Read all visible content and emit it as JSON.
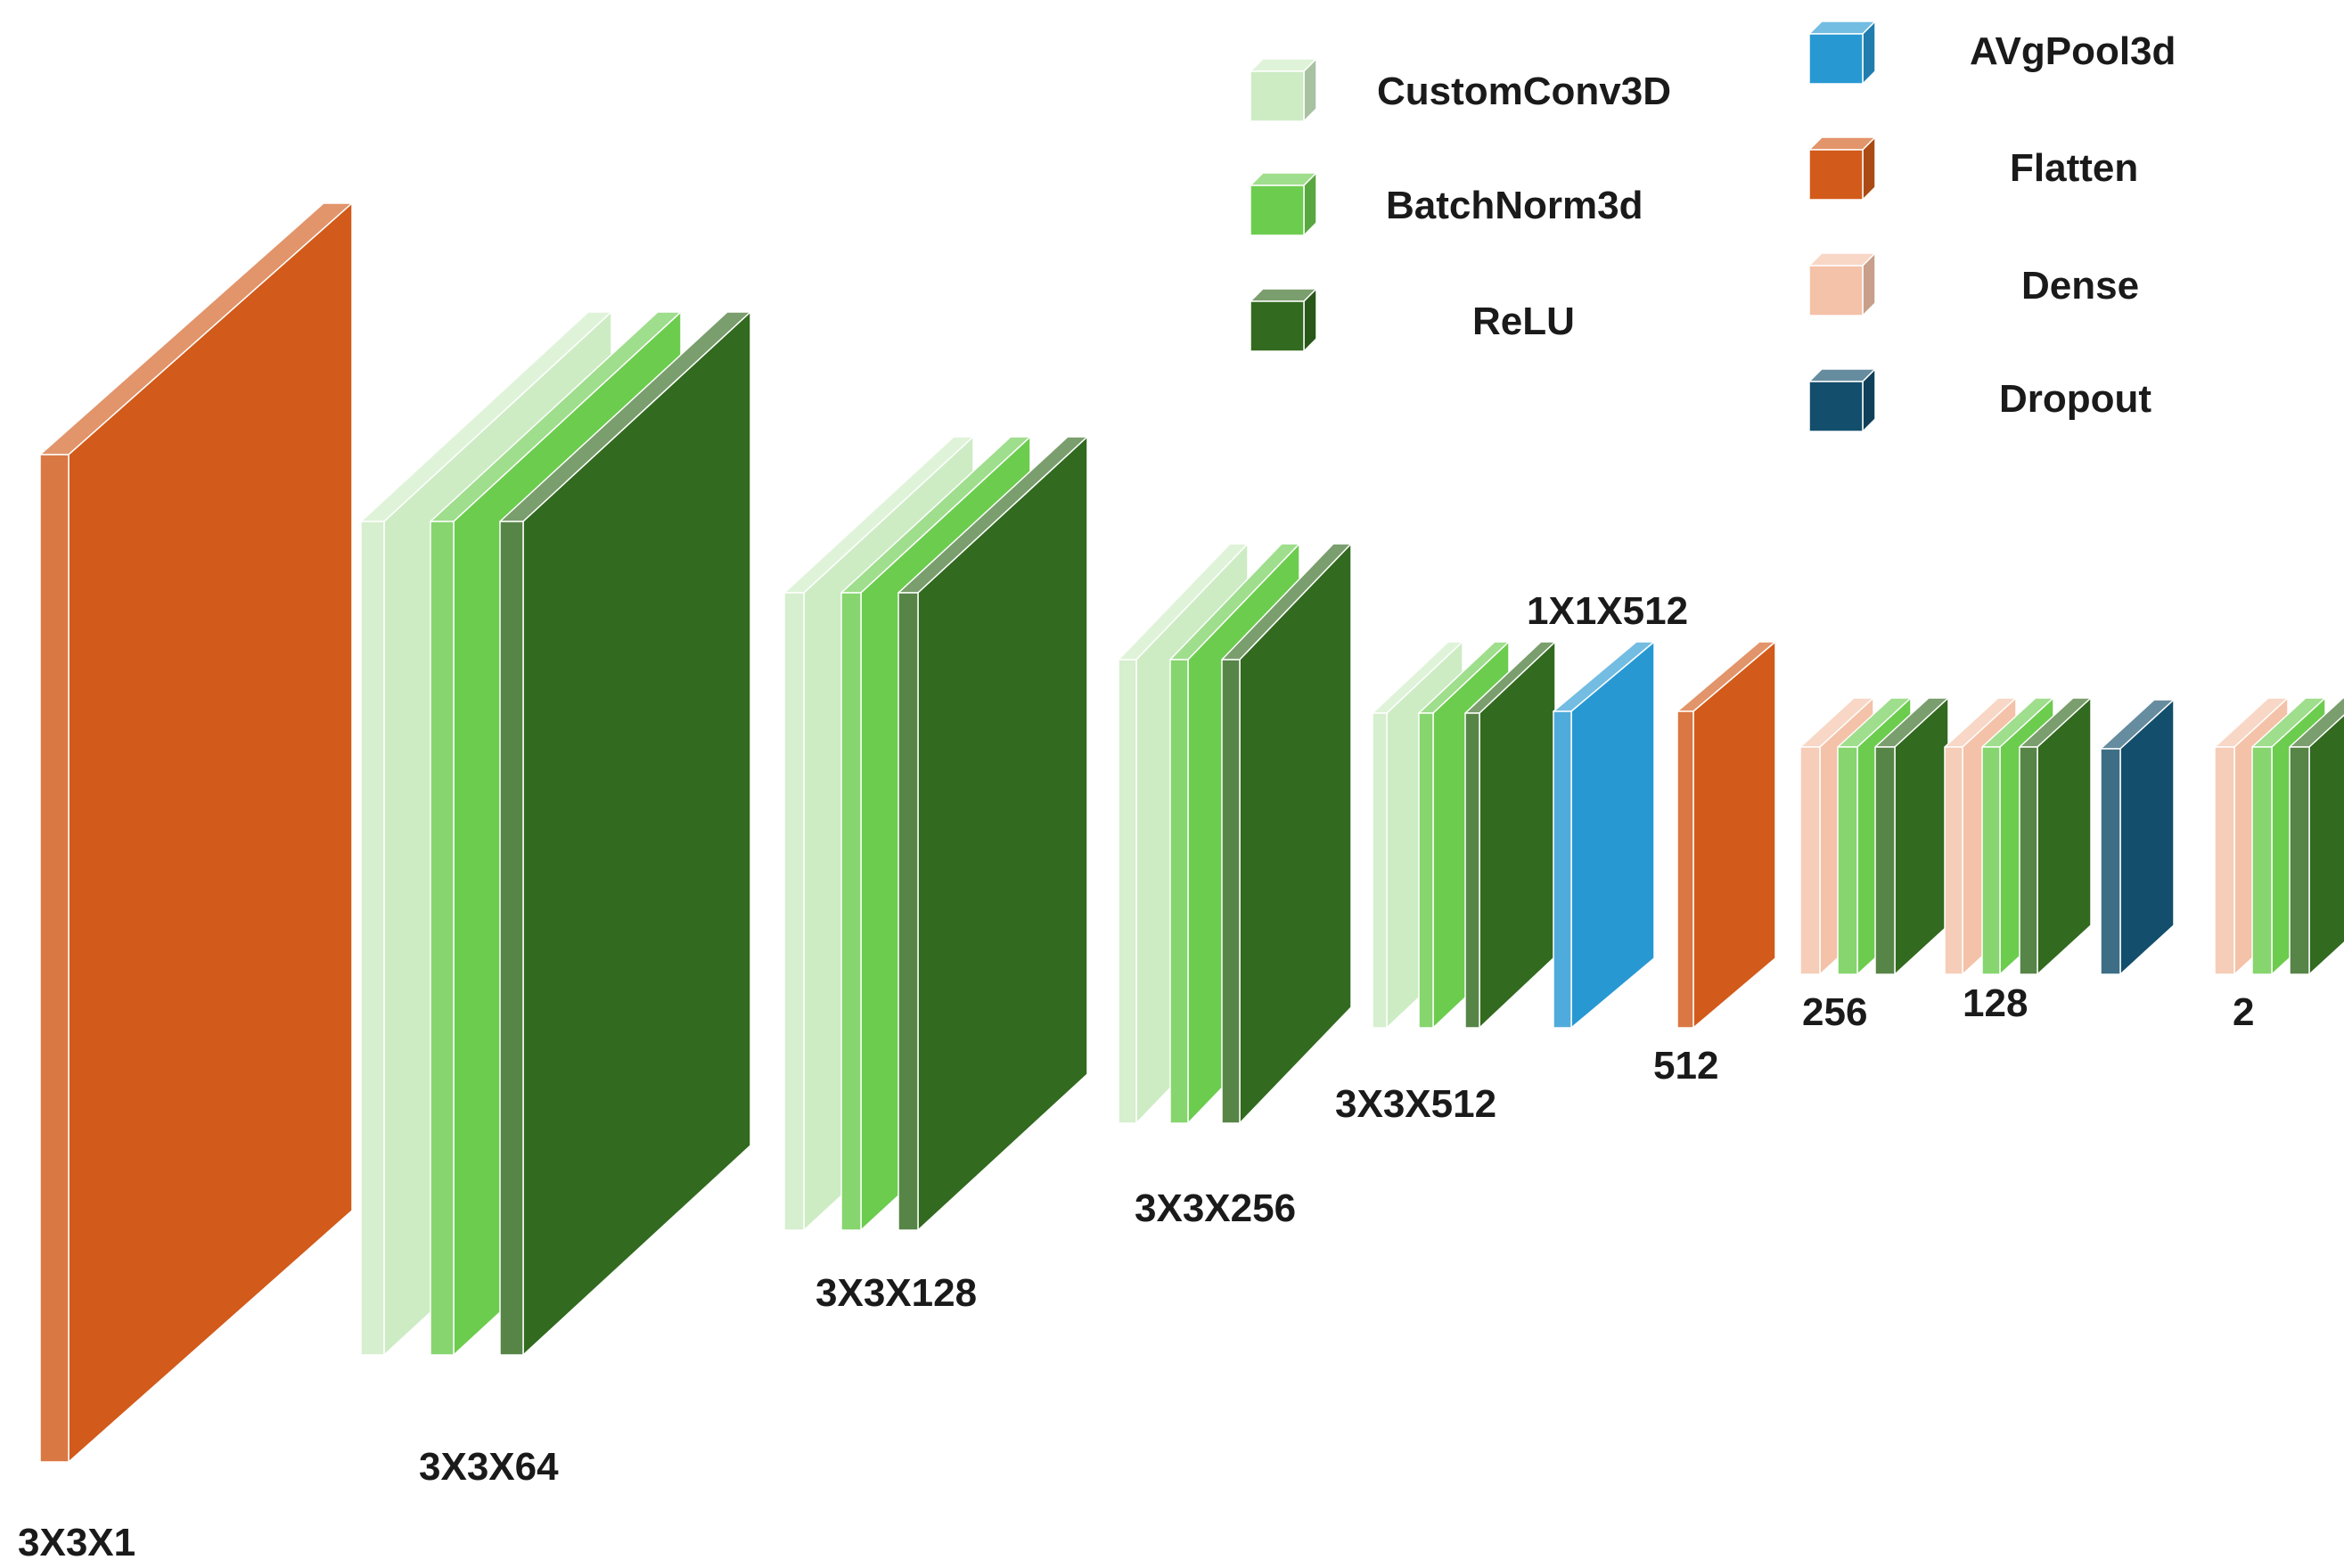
{
  "colors": {
    "custom_conv3d": "#cdecc4",
    "batchnorm3d": "#6ccc4e",
    "relu": "#326a1f",
    "avgpool3d": "#2898d3",
    "flatten": "#d25a1a",
    "dense": "#f4c2a8",
    "dropout": "#134e6c"
  },
  "legend": [
    {
      "label": "CustomConv3D",
      "type": "custom_conv3d"
    },
    {
      "label": "BatchNorm3d",
      "type": "batchnorm3d"
    },
    {
      "label": "ReLU",
      "type": "relu"
    },
    {
      "label": "AVgPool3d",
      "type": "avgpool3d"
    },
    {
      "label": "Flatten",
      "type": "flatten"
    },
    {
      "label": "Dense",
      "type": "dense"
    },
    {
      "label": "Dropout",
      "type": "dropout"
    }
  ],
  "blocks": [
    {
      "name": "input",
      "label": "3X3X1",
      "layers": [
        "flatten"
      ]
    },
    {
      "name": "conv-block-1",
      "label": "3X3X64",
      "layers": [
        "custom_conv3d",
        "batchnorm3d",
        "relu"
      ]
    },
    {
      "name": "conv-block-2",
      "label": "3X3X128",
      "layers": [
        "custom_conv3d",
        "batchnorm3d",
        "relu"
      ]
    },
    {
      "name": "conv-block-3",
      "label": "3X3X256",
      "layers": [
        "custom_conv3d",
        "batchnorm3d",
        "relu"
      ]
    },
    {
      "name": "conv-block-4",
      "label": "3X3X512",
      "layers": [
        "custom_conv3d",
        "batchnorm3d",
        "relu"
      ]
    },
    {
      "name": "avgpool",
      "label": "1X1X512",
      "layers": [
        "avgpool3d"
      ]
    },
    {
      "name": "flatten",
      "label": "512",
      "layers": [
        "flatten"
      ]
    },
    {
      "name": "dense-block-1",
      "label": "256",
      "layers": [
        "dense",
        "batchnorm3d",
        "relu"
      ]
    },
    {
      "name": "dense-block-2",
      "label": "128",
      "layers": [
        "dense",
        "batchnorm3d",
        "relu"
      ]
    },
    {
      "name": "dropout",
      "label": "",
      "layers": [
        "dropout"
      ]
    },
    {
      "name": "dense-block-3",
      "label": "2",
      "layers": [
        "dense",
        "batchnorm3d",
        "relu"
      ]
    }
  ]
}
